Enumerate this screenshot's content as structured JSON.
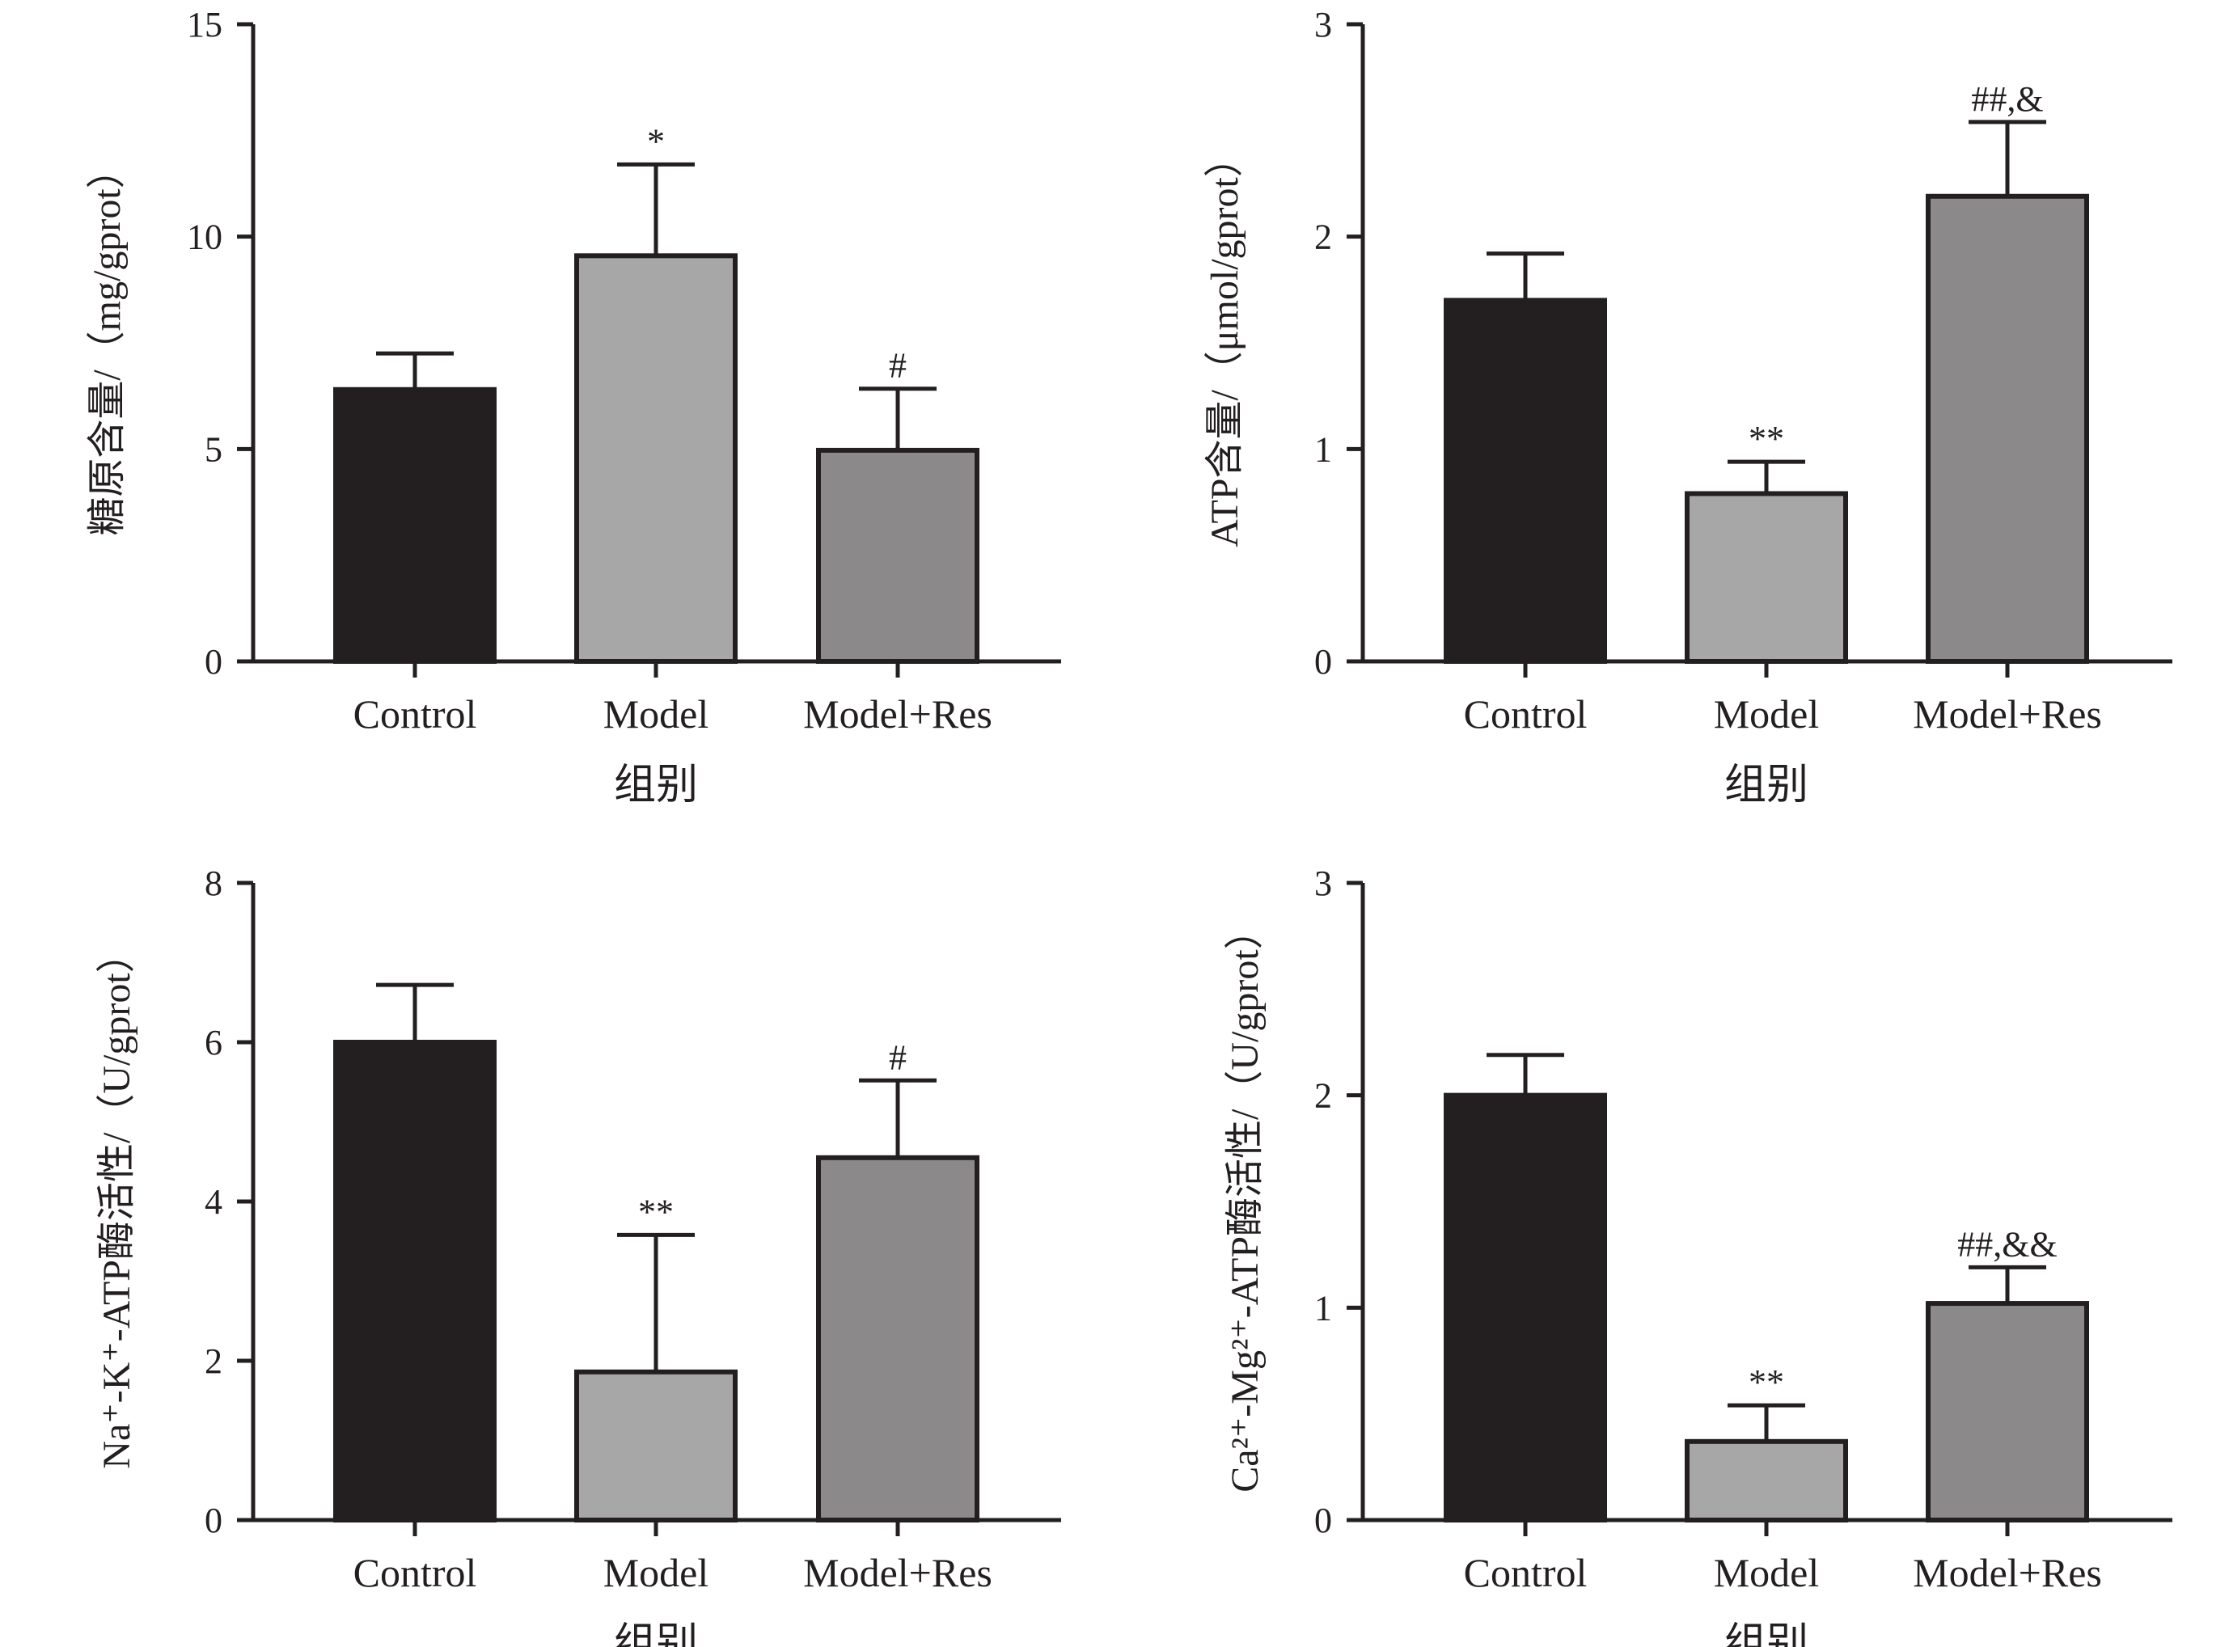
{
  "chart_data": [
    {
      "type": "bar",
      "categories": [
        "Control",
        "Model",
        "Model+Res"
      ],
      "values": [
        6.4,
        9.55,
        4.97
      ],
      "errors": [
        0.85,
        2.15,
        1.45
      ],
      "annotations": [
        "",
        "*",
        "#"
      ],
      "colors": [
        "#231f20",
        "#a8a7a7",
        "#8b898a"
      ],
      "xlabel": "组别",
      "ylabel": "糖原含量/（mg/gprot）",
      "ylim": [
        0,
        15
      ],
      "yticks": [
        0,
        5,
        10,
        15
      ],
      "grid": false
    },
    {
      "type": "bar",
      "categories": [
        "Control",
        "Model",
        "Model+Res"
      ],
      "values": [
        1.7,
        0.79,
        2.19
      ],
      "errors": [
        0.22,
        0.15,
        0.35
      ],
      "annotations": [
        "",
        "**",
        "##,&"
      ],
      "colors": [
        "#231f20",
        "#a8a7a7",
        "#8b898a"
      ],
      "xlabel": "组别",
      "ylabel": "ATP含量/（μmol/gprot）",
      "ylim": [
        0,
        3
      ],
      "yticks": [
        0,
        1,
        2,
        3
      ],
      "grid": false
    },
    {
      "type": "bar",
      "categories": [
        "Control",
        "Model",
        "Model+Res"
      ],
      "values": [
        6.0,
        1.86,
        4.55
      ],
      "errors": [
        0.72,
        1.72,
        0.97
      ],
      "annotations": [
        "",
        "**",
        "#"
      ],
      "colors": [
        "#231f20",
        "#a8a7a7",
        "#8b898a"
      ],
      "xlabel": "组别",
      "ylabel": "Na⁺-K⁺-ATP酶活性/（U/gprot）",
      "ylim": [
        0,
        8
      ],
      "yticks": [
        0,
        2,
        4,
        6,
        8
      ],
      "grid": false
    },
    {
      "type": "bar",
      "categories": [
        "Control",
        "Model",
        "Model+Res"
      ],
      "values": [
        2.0,
        0.37,
        1.02
      ],
      "errors": [
        0.19,
        0.17,
        0.17
      ],
      "annotations": [
        "",
        "**",
        "##,&&"
      ],
      "colors": [
        "#231f20",
        "#a8a7a7",
        "#8b898a"
      ],
      "xlabel": "组别",
      "ylabel": "Ca²⁺-Mg²⁺-ATP酶活性/（U/gprot）",
      "ylim": [
        0,
        3
      ],
      "yticks": [
        0,
        1,
        2,
        3
      ],
      "grid": false
    }
  ]
}
